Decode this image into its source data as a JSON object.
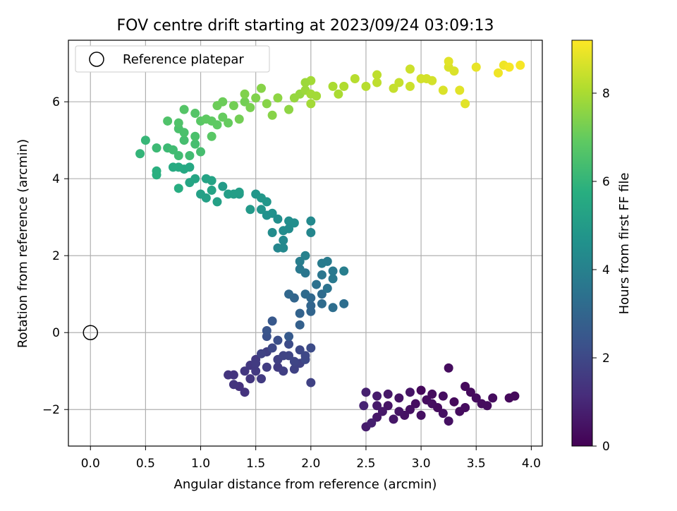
{
  "chart_data": {
    "type": "scatter",
    "title": "FOV centre drift starting at 2023/09/24 03:09:13",
    "xlabel": "Angular distance from reference (arcmin)",
    "ylabel": "Rotation from reference (arcmin)",
    "xlim": [
      -0.2,
      4.1
    ],
    "ylim": [
      -2.95,
      7.6
    ],
    "xticks": [
      0.0,
      0.5,
      1.0,
      1.5,
      2.0,
      2.5,
      3.0,
      3.5,
      4.0
    ],
    "xtick_labels": [
      "0.0",
      "0.5",
      "1.0",
      "1.5",
      "2.0",
      "2.5",
      "3.0",
      "3.5",
      "4.0"
    ],
    "yticks": [
      -2,
      0,
      2,
      4,
      6
    ],
    "ytick_labels": [
      "−2",
      "0",
      "2",
      "4",
      "6"
    ],
    "grid": true,
    "legend": {
      "position": "top-left",
      "label": "Reference platepar"
    },
    "reference_point": {
      "x": 0.0,
      "y": 0.0
    },
    "colorbar": {
      "label": "Hours from first FF file",
      "colormap": "viridis",
      "range": [
        0,
        9.2
      ],
      "ticks": [
        0,
        2,
        4,
        6,
        8
      ],
      "tick_labels": [
        "0",
        "2",
        "4",
        "6",
        "8"
      ]
    },
    "points": [
      [
        3.3,
        -1.8,
        0.2
      ],
      [
        3.1,
        -1.6,
        0.3
      ],
      [
        2.9,
        -2.0,
        0.4
      ],
      [
        3.5,
        -1.7,
        0.3
      ],
      [
        2.7,
        -1.9,
        0.5
      ],
      [
        3.2,
        -2.1,
        0.4
      ],
      [
        3.0,
        -1.5,
        0.2
      ],
      [
        3.6,
        -1.9,
        0.3
      ],
      [
        2.6,
        -2.2,
        0.6
      ],
      [
        3.4,
        -1.4,
        0.2
      ],
      [
        2.8,
        -1.7,
        0.5
      ],
      [
        3.25,
        -0.92,
        0.3
      ],
      [
        3.8,
        -1.7,
        0.2
      ],
      [
        3.85,
        -1.65,
        0.2
      ],
      [
        3.25,
        -2.3,
        0.4
      ],
      [
        2.5,
        -2.45,
        0.7
      ],
      [
        2.55,
        -2.35,
        0.8
      ],
      [
        2.48,
        -1.9,
        0.9
      ],
      [
        2.5,
        -1.55,
        0.8
      ],
      [
        2.6,
        -1.65,
        0.7
      ],
      [
        3.05,
        -1.75,
        0.3
      ],
      [
        2.95,
        -1.85,
        0.35
      ],
      [
        3.15,
        -1.95,
        0.3
      ],
      [
        3.35,
        -2.05,
        0.3
      ],
      [
        3.45,
        -1.55,
        0.25
      ],
      [
        2.85,
        -2.15,
        0.45
      ],
      [
        2.65,
        -2.05,
        0.6
      ],
      [
        2.75,
        -2.25,
        0.55
      ],
      [
        3.55,
        -1.85,
        0.3
      ],
      [
        3.65,
        -1.7,
        0.3
      ],
      [
        3.0,
        -2.15,
        0.4
      ],
      [
        3.2,
        -1.65,
        0.35
      ],
      [
        2.9,
        -1.55,
        0.5
      ],
      [
        2.7,
        -1.6,
        0.6
      ],
      [
        3.4,
        -1.95,
        0.3
      ],
      [
        3.1,
        -1.85,
        0.35
      ],
      [
        2.8,
        -2.05,
        0.5
      ],
      [
        2.6,
        -1.9,
        0.65
      ],
      [
        1.5,
        -0.7,
        1.5
      ],
      [
        1.7,
        -0.9,
        1.6
      ],
      [
        1.6,
        -0.5,
        1.7
      ],
      [
        1.9,
        -0.8,
        1.8
      ],
      [
        1.4,
        -1.0,
        1.5
      ],
      [
        1.8,
        -0.6,
        1.9
      ],
      [
        1.3,
        -1.1,
        1.4
      ],
      [
        1.55,
        -1.2,
        1.6
      ],
      [
        1.45,
        -0.85,
        1.5
      ],
      [
        1.75,
        -1.0,
        1.7
      ],
      [
        1.65,
        -0.4,
        2.0
      ],
      [
        1.95,
        -0.7,
        2.0
      ],
      [
        2.0,
        -1.3,
        1.8
      ],
      [
        1.35,
        -1.4,
        1.3
      ],
      [
        1.4,
        -1.55,
        1.35
      ],
      [
        1.25,
        -1.1,
        1.4
      ],
      [
        1.3,
        -1.35,
        1.4
      ],
      [
        2.0,
        -0.4,
        2.1
      ],
      [
        1.85,
        -0.95,
        1.8
      ],
      [
        1.6,
        -0.9,
        1.65
      ],
      [
        1.5,
        -1.0,
        1.55
      ],
      [
        1.7,
        -0.7,
        1.75
      ],
      [
        1.55,
        -0.55,
        1.8
      ],
      [
        1.45,
        -1.2,
        1.45
      ],
      [
        1.9,
        -0.45,
        2.0
      ],
      [
        1.8,
        -0.3,
        2.1
      ],
      [
        1.6,
        -0.1,
        2.3
      ],
      [
        1.7,
        -0.2,
        2.2
      ],
      [
        1.65,
        0.3,
        2.5
      ],
      [
        1.6,
        0.05,
        2.4
      ],
      [
        1.75,
        -0.6,
        1.85
      ],
      [
        1.85,
        -0.75,
        1.9
      ],
      [
        1.95,
        -0.6,
        2.0
      ],
      [
        1.5,
        -0.8,
        1.6
      ],
      [
        1.8,
        -0.1,
        2.6
      ],
      [
        1.9,
        0.2,
        2.8
      ],
      [
        1.9,
        0.5,
        2.9
      ],
      [
        2.0,
        0.7,
        3.0
      ],
      [
        2.1,
        1.0,
        3.2
      ],
      [
        2.0,
        0.9,
        3.1
      ],
      [
        2.3,
        0.75,
        3.3
      ],
      [
        2.2,
        0.65,
        3.3
      ],
      [
        1.85,
        0.9,
        3.0
      ],
      [
        2.1,
        0.75,
        3.2
      ],
      [
        2.05,
        1.25,
        3.4
      ],
      [
        2.15,
        1.15,
        3.5
      ],
      [
        1.95,
        1.55,
        3.6
      ],
      [
        2.1,
        1.8,
        3.8
      ],
      [
        2.2,
        1.6,
        3.7
      ],
      [
        2.3,
        1.6,
        3.9
      ],
      [
        1.95,
        2.0,
        4.0
      ],
      [
        2.1,
        1.5,
        3.6
      ],
      [
        2.15,
        1.85,
        3.8
      ],
      [
        1.9,
        1.85,
        3.9
      ],
      [
        2.0,
        2.6,
        4.2
      ],
      [
        2.0,
        2.9,
        4.3
      ],
      [
        2.2,
        1.4,
        3.7
      ],
      [
        1.95,
        1.0,
        3.2
      ],
      [
        1.8,
        1.0,
        3.1
      ],
      [
        1.9,
        1.65,
        3.7
      ],
      [
        2.0,
        0.55,
        3.0
      ],
      [
        1.75,
        2.65,
        4.4
      ],
      [
        1.8,
        2.9,
        4.5
      ],
      [
        1.7,
        2.2,
        4.2
      ],
      [
        1.75,
        2.4,
        4.3
      ],
      [
        1.6,
        3.05,
        4.6
      ],
      [
        1.55,
        3.2,
        4.7
      ],
      [
        1.65,
        3.1,
        4.6
      ],
      [
        1.85,
        2.85,
        4.5
      ],
      [
        1.5,
        3.6,
        4.8
      ],
      [
        1.6,
        3.4,
        4.8
      ],
      [
        1.45,
        3.2,
        4.9
      ],
      [
        1.7,
        2.95,
        4.5
      ],
      [
        1.75,
        2.2,
        4.3
      ],
      [
        1.8,
        2.7,
        4.4
      ],
      [
        1.65,
        2.6,
        4.4
      ],
      [
        1.55,
        3.5,
        4.85
      ],
      [
        1.35,
        3.6,
        5.0
      ],
      [
        1.25,
        3.6,
        5.1
      ],
      [
        1.2,
        3.8,
        5.0
      ],
      [
        1.05,
        3.5,
        5.2
      ],
      [
        1.1,
        3.7,
        5.3
      ],
      [
        1.0,
        3.6,
        5.2
      ],
      [
        0.9,
        3.9,
        5.4
      ],
      [
        1.05,
        4.0,
        5.3
      ],
      [
        1.1,
        3.95,
        5.3
      ],
      [
        0.95,
        4.0,
        5.4
      ],
      [
        0.85,
        4.25,
        5.5
      ],
      [
        0.8,
        4.3,
        5.6
      ],
      [
        0.75,
        4.3,
        5.6
      ],
      [
        0.9,
        4.3,
        5.5
      ],
      [
        0.8,
        3.75,
        5.7
      ],
      [
        0.6,
        4.1,
        5.8
      ],
      [
        0.6,
        4.2,
        5.8
      ],
      [
        1.15,
        3.4,
        5.2
      ],
      [
        1.3,
        3.6,
        5.1
      ],
      [
        1.35,
        3.65,
        5.1
      ],
      [
        0.45,
        4.65,
        6.0
      ],
      [
        0.5,
        5.0,
        6.1
      ],
      [
        0.6,
        4.8,
        6.2
      ],
      [
        0.7,
        4.8,
        6.2
      ],
      [
        0.75,
        4.75,
        6.3
      ],
      [
        0.8,
        4.6,
        6.3
      ],
      [
        0.9,
        4.6,
        6.3
      ],
      [
        0.85,
        5.0,
        6.4
      ],
      [
        0.95,
        4.9,
        6.4
      ],
      [
        1.0,
        4.7,
        6.4
      ],
      [
        0.95,
        5.1,
        6.5
      ],
      [
        0.8,
        5.3,
        6.5
      ],
      [
        0.85,
        5.2,
        6.5
      ],
      [
        0.7,
        5.5,
        6.6
      ],
      [
        0.8,
        5.45,
        6.6
      ],
      [
        0.85,
        5.8,
        6.7
      ],
      [
        0.95,
        5.7,
        6.7
      ],
      [
        1.0,
        5.5,
        6.8
      ],
      [
        1.1,
        5.1,
        6.8
      ],
      [
        1.15,
        5.4,
        6.9
      ],
      [
        1.1,
        5.5,
        6.9
      ],
      [
        1.05,
        5.55,
        6.9
      ],
      [
        1.25,
        5.45,
        7.0
      ],
      [
        1.2,
        5.6,
        7.0
      ],
      [
        1.15,
        5.9,
        7.1
      ],
      [
        1.2,
        6.0,
        7.1
      ],
      [
        1.3,
        5.9,
        7.2
      ],
      [
        1.4,
        6.0,
        7.2
      ],
      [
        1.45,
        5.85,
        7.3
      ],
      [
        1.35,
        5.55,
        7.2
      ],
      [
        1.4,
        6.2,
        7.4
      ],
      [
        1.5,
        6.1,
        7.4
      ],
      [
        1.55,
        6.35,
        7.5
      ],
      [
        1.6,
        5.95,
        7.5
      ],
      [
        1.65,
        5.65,
        7.5
      ],
      [
        1.7,
        6.1,
        7.6
      ],
      [
        1.8,
        5.8,
        7.6
      ],
      [
        1.85,
        6.1,
        7.7
      ],
      [
        1.9,
        6.2,
        7.7
      ],
      [
        1.95,
        6.3,
        7.8
      ],
      [
        2.0,
        6.55,
        7.9
      ],
      [
        2.05,
        6.15,
        7.9
      ],
      [
        2.0,
        5.95,
        7.9
      ],
      [
        1.95,
        6.5,
        7.8
      ],
      [
        2.2,
        6.4,
        8.0
      ],
      [
        2.25,
        6.2,
        8.0
      ],
      [
        2.3,
        6.4,
        8.1
      ],
      [
        2.4,
        6.6,
        8.2
      ],
      [
        2.5,
        6.4,
        8.2
      ],
      [
        2.6,
        6.5,
        8.3
      ],
      [
        2.6,
        6.7,
        8.3
      ],
      [
        2.75,
        6.35,
        8.4
      ],
      [
        2.8,
        6.5,
        8.4
      ],
      [
        2.9,
        6.4,
        8.5
      ],
      [
        2.9,
        6.85,
        8.5
      ],
      [
        3.0,
        6.6,
        8.6
      ],
      [
        3.05,
        6.6,
        8.6
      ],
      [
        3.1,
        6.55,
        8.6
      ],
      [
        3.2,
        6.3,
        8.7
      ],
      [
        3.25,
        6.9,
        8.7
      ],
      [
        3.3,
        6.8,
        8.7
      ],
      [
        3.25,
        7.05,
        8.8
      ],
      [
        3.35,
        6.3,
        8.8
      ],
      [
        3.4,
        5.95,
        8.8
      ],
      [
        3.5,
        6.9,
        8.9
      ],
      [
        3.7,
        6.75,
        9.0
      ],
      [
        3.75,
        6.95,
        9.0
      ],
      [
        3.8,
        6.9,
        9.1
      ],
      [
        3.9,
        6.95,
        9.1
      ],
      [
        2.0,
        6.2,
        7.9
      ]
    ]
  }
}
